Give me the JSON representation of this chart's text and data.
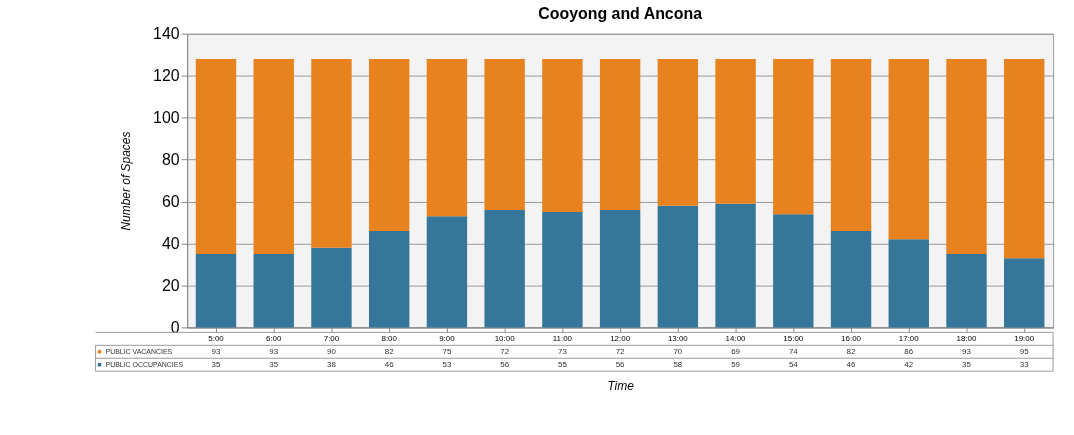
{
  "chart_data": {
    "type": "bar",
    "title": "Cooyong and Ancona",
    "xlabel": "Time",
    "ylabel": "Number of Spaces",
    "categories": [
      "5:00",
      "6:00",
      "7:00",
      "8:00",
      "9:00",
      "10:00",
      "11:00",
      "12:00",
      "13:00",
      "14:00",
      "15:00",
      "16:00",
      "17:00",
      "18:00",
      "19:00"
    ],
    "series": [
      {
        "name": "PUBLIC OCCUPANCIES",
        "color": "#36769b",
        "values": [
          35,
          35,
          38,
          46,
          53,
          56,
          55,
          56,
          58,
          59,
          54,
          46,
          42,
          35,
          33
        ]
      },
      {
        "name": "PUBLIC VACANCIES",
        "color": "#e8821e",
        "values": [
          93,
          93,
          90,
          82,
          75,
          72,
          73,
          72,
          70,
          69,
          74,
          82,
          86,
          93,
          95
        ]
      }
    ],
    "stacked": true,
    "ylim": [
      0,
      140
    ],
    "yticks": [
      0,
      20,
      40,
      60,
      80,
      100,
      120,
      140
    ],
    "grid": "y",
    "data_labels": true,
    "legend": "bottom"
  }
}
